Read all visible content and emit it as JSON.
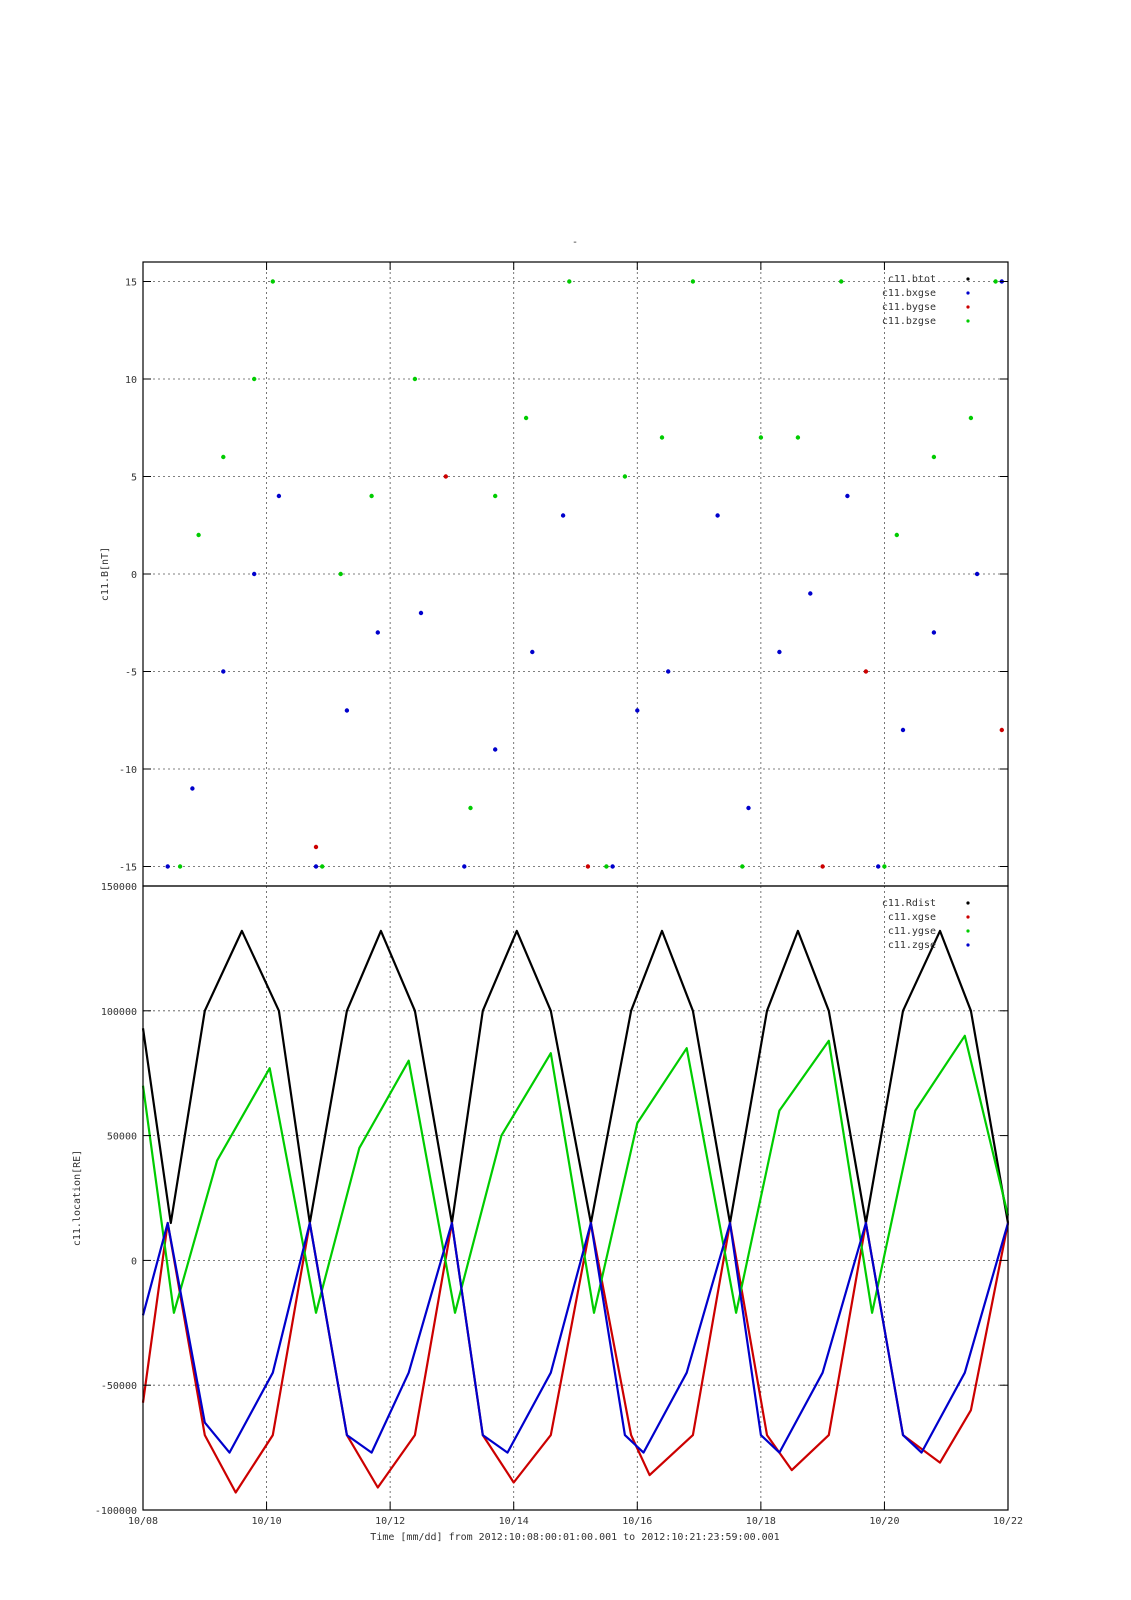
{
  "title": "-",
  "xlabel": "Time [mm/dd]  from 2012:10:08:00:01:00.001  to  2012:10:21:23:59:00.001",
  "x_ticks": [
    "10/08",
    "10/10",
    "10/12",
    "10/14",
    "10/16",
    "10/18",
    "10/20",
    "10/22"
  ],
  "x_range_days": [
    8,
    22
  ],
  "colors": {
    "black": "#000000",
    "blue": "#0000cc",
    "red": "#cc0000",
    "green": "#00cc00"
  },
  "chart_data": [
    {
      "type": "scatter",
      "ylabel": "c11.B[nT]",
      "ylim": [
        -16,
        16
      ],
      "y_ticks": [
        "15",
        "10",
        "5",
        "0",
        "-5",
        "-10",
        "-15"
      ],
      "grid": true,
      "legend_position": "top-right",
      "series": [
        {
          "name": "c11.btot",
          "color": "#000000",
          "points": []
        },
        {
          "name": "c11.bxgse",
          "color": "#0000cc",
          "points": [
            [
              8.4,
              -15
            ],
            [
              8.8,
              -11
            ],
            [
              9.3,
              -5
            ],
            [
              9.8,
              0
            ],
            [
              10.2,
              4
            ],
            [
              10.8,
              -15
            ],
            [
              11.3,
              -7
            ],
            [
              11.8,
              -3
            ],
            [
              12.5,
              -2
            ],
            [
              13.2,
              -15
            ],
            [
              13.7,
              -9
            ],
            [
              14.3,
              -4
            ],
            [
              14.8,
              3
            ],
            [
              15.6,
              -15
            ],
            [
              16.0,
              -7
            ],
            [
              16.5,
              -5
            ],
            [
              17.3,
              3
            ],
            [
              17.8,
              -12
            ],
            [
              18.3,
              -4
            ],
            [
              18.8,
              -1
            ],
            [
              19.4,
              4
            ],
            [
              19.9,
              -15
            ],
            [
              20.3,
              -8
            ],
            [
              20.8,
              -3
            ],
            [
              21.5,
              0
            ],
            [
              21.9,
              15
            ]
          ]
        },
        {
          "name": "c11.bygse",
          "color": "#cc0000",
          "points": [
            [
              10.8,
              -14
            ],
            [
              12.9,
              5
            ],
            [
              15.2,
              -15
            ],
            [
              19.0,
              -15
            ],
            [
              19.7,
              -5
            ],
            [
              21.9,
              -8
            ]
          ]
        },
        {
          "name": "c11.bzgse",
          "color": "#00cc00",
          "points": [
            [
              8.6,
              -15
            ],
            [
              8.9,
              2
            ],
            [
              9.3,
              6
            ],
            [
              9.8,
              10
            ],
            [
              10.1,
              15
            ],
            [
              10.9,
              -15
            ],
            [
              11.2,
              0
            ],
            [
              11.7,
              4
            ],
            [
              12.4,
              10
            ],
            [
              13.3,
              -12
            ],
            [
              13.7,
              4
            ],
            [
              14.2,
              8
            ],
            [
              14.9,
              15
            ],
            [
              15.5,
              -15
            ],
            [
              15.8,
              5
            ],
            [
              16.4,
              7
            ],
            [
              16.9,
              15
            ],
            [
              17.7,
              -15
            ],
            [
              18.0,
              7
            ],
            [
              18.6,
              7
            ],
            [
              19.3,
              15
            ],
            [
              20.0,
              -15
            ],
            [
              20.2,
              2
            ],
            [
              20.8,
              6
            ],
            [
              21.4,
              8
            ],
            [
              21.8,
              15
            ]
          ]
        }
      ]
    },
    {
      "type": "line",
      "ylabel": "c11.location[RE]",
      "ylim": [
        -100000,
        150000
      ],
      "y_ticks": [
        "150000",
        "100000",
        "50000",
        "0",
        "-50000",
        "-100000"
      ],
      "grid": true,
      "legend_position": "top-right",
      "series": [
        {
          "name": "c11.Rdist",
          "color": "#000000",
          "points": [
            [
              8.0,
              93000
            ],
            [
              8.45,
              15000
            ],
            [
              9.0,
              100000
            ],
            [
              9.6,
              132000
            ],
            [
              10.2,
              100000
            ],
            [
              10.7,
              15000
            ],
            [
              11.3,
              100000
            ],
            [
              11.85,
              132000
            ],
            [
              12.4,
              100000
            ],
            [
              13.0,
              15000
            ],
            [
              13.5,
              100000
            ],
            [
              14.05,
              132000
            ],
            [
              14.6,
              100000
            ],
            [
              15.25,
              15000
            ],
            [
              15.9,
              100000
            ],
            [
              16.4,
              132000
            ],
            [
              16.9,
              100000
            ],
            [
              17.5,
              15000
            ],
            [
              18.1,
              100000
            ],
            [
              18.6,
              132000
            ],
            [
              19.1,
              100000
            ],
            [
              19.7,
              15000
            ],
            [
              20.3,
              100000
            ],
            [
              20.9,
              132000
            ],
            [
              21.4,
              100000
            ],
            [
              22.0,
              15000
            ]
          ]
        },
        {
          "name": "c11.xgse",
          "color": "#cc0000",
          "points": [
            [
              8.0,
              -57000
            ],
            [
              8.4,
              15000
            ],
            [
              9.0,
              -70000
            ],
            [
              9.5,
              -93000
            ],
            [
              10.1,
              -70000
            ],
            [
              10.7,
              15000
            ],
            [
              11.3,
              -70000
            ],
            [
              11.8,
              -91000
            ],
            [
              12.4,
              -70000
            ],
            [
              13.0,
              15000
            ],
            [
              13.5,
              -70000
            ],
            [
              14.0,
              -89000
            ],
            [
              14.6,
              -70000
            ],
            [
              15.25,
              15000
            ],
            [
              15.9,
              -70000
            ],
            [
              16.2,
              -86000
            ],
            [
              16.9,
              -70000
            ],
            [
              17.5,
              15000
            ],
            [
              18.1,
              -70000
            ],
            [
              18.5,
              -84000
            ],
            [
              19.1,
              -70000
            ],
            [
              19.7,
              15000
            ],
            [
              20.3,
              -70000
            ],
            [
              20.9,
              -81000
            ],
            [
              21.4,
              -60000
            ],
            [
              22.0,
              15000
            ]
          ]
        },
        {
          "name": "c11.ygse",
          "color": "#00cc00",
          "points": [
            [
              8.0,
              70000
            ],
            [
              8.5,
              -21000
            ],
            [
              9.2,
              40000
            ],
            [
              10.05,
              77000
            ],
            [
              10.8,
              -21000
            ],
            [
              11.5,
              45000
            ],
            [
              12.3,
              80000
            ],
            [
              13.05,
              -21000
            ],
            [
              13.8,
              50000
            ],
            [
              14.6,
              83000
            ],
            [
              15.3,
              -21000
            ],
            [
              16.0,
              55000
            ],
            [
              16.8,
              85000
            ],
            [
              17.6,
              -21000
            ],
            [
              18.3,
              60000
            ],
            [
              19.1,
              88000
            ],
            [
              19.8,
              -21000
            ],
            [
              20.5,
              60000
            ],
            [
              21.3,
              90000
            ],
            [
              22.0,
              18000
            ]
          ]
        },
        {
          "name": "c11.zgse",
          "color": "#0000cc",
          "points": [
            [
              8.0,
              -22000
            ],
            [
              8.4,
              15000
            ],
            [
              9.0,
              -65000
            ],
            [
              9.4,
              -77000
            ],
            [
              10.1,
              -45000
            ],
            [
              10.7,
              15000
            ],
            [
              11.3,
              -70000
            ],
            [
              11.7,
              -77000
            ],
            [
              12.3,
              -45000
            ],
            [
              13.0,
              15000
            ],
            [
              13.5,
              -70000
            ],
            [
              13.9,
              -77000
            ],
            [
              14.6,
              -45000
            ],
            [
              15.25,
              15000
            ],
            [
              15.8,
              -70000
            ],
            [
              16.1,
              -77000
            ],
            [
              16.8,
              -45000
            ],
            [
              17.5,
              15000
            ],
            [
              18.0,
              -70000
            ],
            [
              18.3,
              -77000
            ],
            [
              19.0,
              -45000
            ],
            [
              19.7,
              15000
            ],
            [
              20.3,
              -70000
            ],
            [
              20.6,
              -77000
            ],
            [
              21.3,
              -45000
            ],
            [
              22.0,
              15000
            ]
          ]
        }
      ]
    }
  ]
}
